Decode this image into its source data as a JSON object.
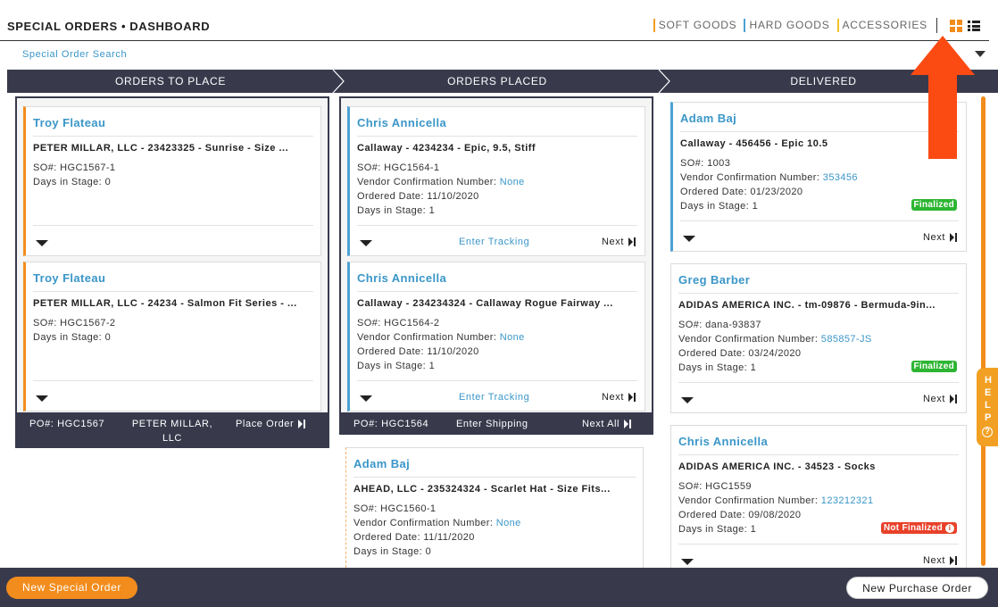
{
  "header": {
    "title": "SPECIAL ORDERS • DASHBOARD",
    "categories": [
      "SOFT GOODS",
      "HARD GOODS",
      "ACCESSORIES"
    ],
    "view_icons": [
      "grid-view-icon",
      "list-view-icon"
    ],
    "accent_color": "#f28c1c"
  },
  "search": {
    "label": "Special Order Search"
  },
  "stages": [
    "ORDERS TO PLACE",
    "ORDERS PLACED",
    "DELIVERED"
  ],
  "labels": {
    "so": "SO#:",
    "vendor_conf": "Vendor Confirmation Number:",
    "ordered_date": "Ordered Date:",
    "days": "Days in Stage:",
    "next": "Next",
    "enter_tracking": "Enter Tracking",
    "po": "PO#:"
  },
  "to_place": {
    "cards": [
      {
        "name": "Troy Flateau",
        "vendor": "PETER MILLAR, LLC - 23423325 - Sunrise - Size ...",
        "so": "HGC1567-1",
        "days": "0"
      },
      {
        "name": "Troy Flateau",
        "vendor": "PETER MILLAR, LLC - 24234 - Salmon Fit Series - ...",
        "so": "HGC1567-2",
        "days": "0"
      }
    ],
    "po_bar": {
      "po": "HGC1567",
      "vendor": "PETER MILLAR, LLC",
      "action": "Place Order"
    }
  },
  "placed": {
    "cards": [
      {
        "name": "Chris Annicella",
        "vendor": "Callaway - 4234234 - Epic, 9.5, Stiff",
        "so": "HGC1564-1",
        "vendor_conf": "None",
        "ordered_date": "11/10/2020",
        "days": "1"
      },
      {
        "name": "Chris Annicella",
        "vendor": "Callaway - 234234324 - Callaway Rogue Fairway ...",
        "so": "HGC1564-2",
        "vendor_conf": "None",
        "ordered_date": "11/10/2020",
        "days": "1"
      },
      {
        "name": "Adam Baj",
        "vendor": "AHEAD, LLC - 235324324 - Scarlet Hat - Size Fits...",
        "so": "HGC1560-1",
        "vendor_conf": "None",
        "ordered_date": "11/11/2020",
        "days": "0"
      }
    ],
    "po_bar": {
      "po": "HGC1564",
      "shipping": "Enter Shipping",
      "action": "Next All"
    }
  },
  "delivered": {
    "cards": [
      {
        "name": "Adam Baj",
        "vendor": "Callaway - 456456 - Epic 10.5",
        "so": "1003",
        "vendor_conf": "353456",
        "ordered_date": "01/23/2020",
        "days": "1",
        "status": "Finalized"
      },
      {
        "name": "Greg Barber",
        "vendor": "ADIDAS AMERICA INC. - tm-09876 - Bermuda-9in...",
        "so": "dana-93837",
        "vendor_conf": "585857-JS",
        "ordered_date": "03/24/2020",
        "days": "1",
        "status": "Finalized"
      },
      {
        "name": "Chris Annicella",
        "vendor": "ADIDAS AMERICA INC. - 34523 - Socks",
        "so": "HGC1559",
        "vendor_conf": "123212321",
        "ordered_date": "09/08/2020",
        "days": "1",
        "status": "Not Finalized"
      }
    ]
  },
  "help": {
    "letters": [
      "H",
      "E",
      "L",
      "P"
    ],
    "q": "?"
  },
  "info_glyph": "i",
  "footer": {
    "new_special_order": "New Special Order",
    "new_purchase_order": "New Purchase Order"
  }
}
